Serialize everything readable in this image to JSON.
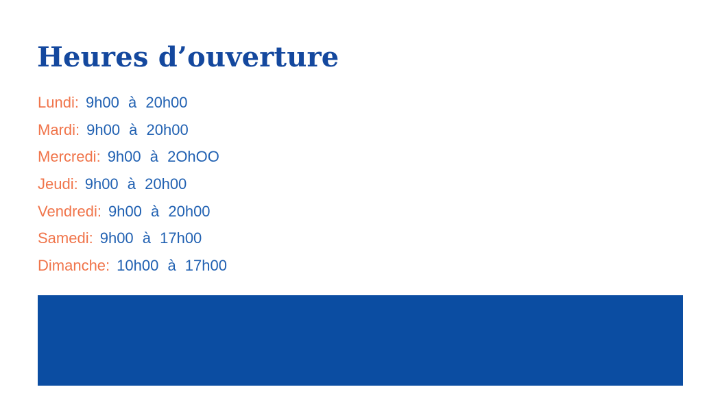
{
  "page": {
    "title": "Heures d’ouverture",
    "background_color": "#FFFFFF"
  },
  "colors": {
    "title": "#14489E",
    "day_label": "#F0744A",
    "time_text": "#2161B2",
    "footer_block": "#0B4DA2"
  },
  "hours": {
    "items": [
      {
        "day": "Lundi:",
        "time": "9h00 à 20h00"
      },
      {
        "day": "Mardi:",
        "time": "9h00 à 20h00"
      },
      {
        "day": "Mercredi:",
        "time": "9h00 à 2OhOO"
      },
      {
        "day": "Jeudi:",
        "time": "9h00 à 20h00"
      },
      {
        "day": "Vendredi:",
        "time": "9h00 à 20h00"
      },
      {
        "day": "Samedi:",
        "time": "9h00 à 17h00"
      },
      {
        "day": "Dimanche:",
        "time": "10h00 à 17h00"
      }
    ]
  }
}
